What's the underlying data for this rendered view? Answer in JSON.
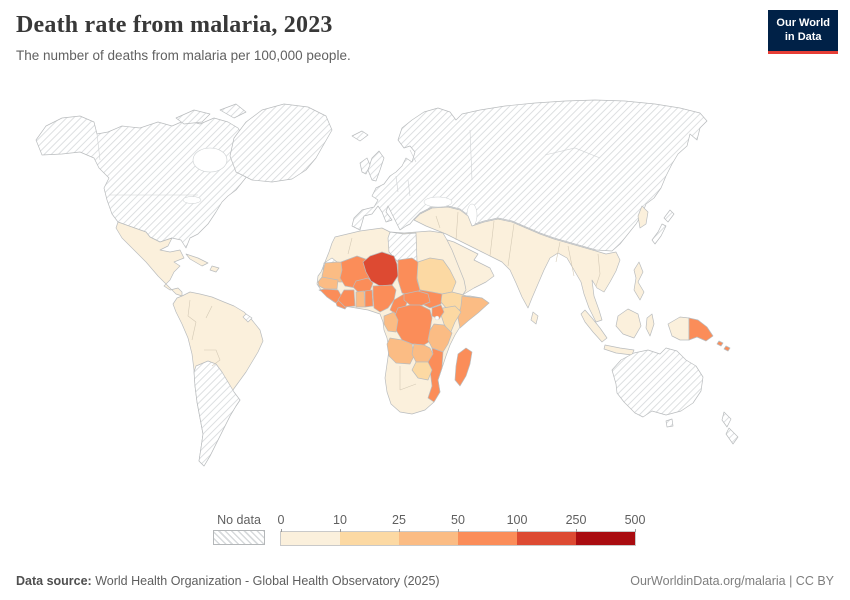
{
  "header": {
    "title": "Death rate from malaria, 2023",
    "subtitle": "The number of deaths from malaria per 100,000 people."
  },
  "logo": {
    "line1": "Our World",
    "line2": "in Data",
    "bg": "#002147",
    "accent": "#e63e36"
  },
  "legend": {
    "no_data_label": "No data",
    "ticks": [
      "0",
      "10",
      "25",
      "50",
      "100",
      "250",
      "500"
    ],
    "hatch_color": "#d7dadc"
  },
  "chart_data": {
    "type": "choropleth-map",
    "title": "Death rate from malaria, 2023",
    "unit": "deaths per 100,000 people",
    "bands": [
      {
        "range": "0-10",
        "color": "#fbf0dc"
      },
      {
        "range": "10-25",
        "color": "#fcd9a3"
      },
      {
        "range": "25-50",
        "color": "#fbbc84"
      },
      {
        "range": "50-100",
        "color": "#fb8d59"
      },
      {
        "range": "100-250",
        "color": "#dd4a32"
      },
      {
        "range": "250-500",
        "color": "#a90c10"
      }
    ],
    "regions": {
      "north-america": "no-data",
      "arctic-islands": "no-data",
      "greenland": "no-data",
      "iceland": "no-data",
      "europe-russia-china": "no-data",
      "united-kingdom": "no-data",
      "ireland": "no-data",
      "japan": "no-data",
      "australia": "no-data",
      "tasmania": "no-data",
      "new-zealand": "no-data",
      "southern-south-america": "no-data",
      "french-guiana": "no-data",
      "libya": "no-data",
      "western-sahara": "no-data",
      "mexico-central-america": 0,
      "cuba": 0,
      "hispaniola": 0,
      "south-america": 0,
      "korea": 0,
      "middle-east-south-asia": 0,
      "arabia": 0,
      "sri-lanka": 0,
      "sumatra": 0,
      "java": 0,
      "borneo": 0,
      "sulawesi": 0,
      "philippines": 0,
      "west-new-guinea": 0,
      "africa-base": 0,
      "yemen": 1,
      "sudan": 1,
      "ethiopia": 1,
      "kenya": 1,
      "zimbabwe": 1,
      "mauritania": 2,
      "senegal": 2,
      "ghana": 2,
      "somalia": 2,
      "tanzania": 2,
      "gabon-congo": 2,
      "angola": 2,
      "zambia": 2,
      "guinea": 3,
      "liberia": 3,
      "mali": 3,
      "burkina-faso": 3,
      "cote-divoire": 3,
      "togo-benin": 3,
      "nigeria": 3,
      "chad": 3,
      "south-sudan": 3,
      "uganda": 3,
      "drc": 3,
      "cameroon": 3,
      "central-african-republic": 3,
      "mozambique": 3,
      "madagascar": 3,
      "papua-new-guinea": 3,
      "solomon-islands": 3,
      "niger": 4
    }
  },
  "footer": {
    "source_label": "Data source:",
    "source_text": " World Health Organization - Global Health Observatory (2025)",
    "attribution": "OurWorldinData.org/malaria | CC BY"
  }
}
